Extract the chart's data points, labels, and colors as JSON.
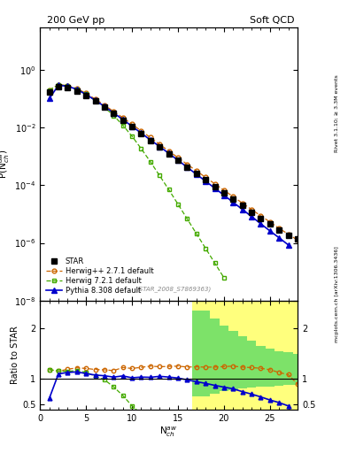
{
  "title_left": "200 GeV pp",
  "title_right": "Soft QCD",
  "xlabel": "N$_{ch}^{aw}$",
  "ylabel_main": "P(N$_{ch}^{aw}$)",
  "ylabel_ratio": "Ratio to STAR",
  "right_label_top": "Rivet 3.1.10; ≥ 3.3M events",
  "right_label_bottom": "mcplots.cern.ch [arXiv:1306.3436]",
  "watermark": "(STAR_2008_S7869363)",
  "star_x": [
    1,
    2,
    3,
    4,
    5,
    6,
    7,
    8,
    9,
    10,
    11,
    12,
    13,
    14,
    15,
    16,
    17,
    18,
    19,
    20,
    21,
    22,
    23,
    24,
    25,
    26,
    27,
    28
  ],
  "star_y": [
    0.165,
    0.265,
    0.24,
    0.185,
    0.127,
    0.082,
    0.051,
    0.031,
    0.018,
    0.0108,
    0.0062,
    0.0036,
    0.0021,
    0.00123,
    0.00072,
    0.00043,
    0.000255,
    0.000152,
    9.1e-05,
    5.4e-05,
    3.2e-05,
    1.95e-05,
    1.18e-05,
    7.2e-06,
    4.5e-06,
    2.85e-06,
    1.85e-06,
    1.4e-06
  ],
  "herwig_x": [
    1,
    2,
    3,
    4,
    5,
    6,
    7,
    8,
    9,
    10,
    11,
    12,
    13,
    14,
    15,
    16,
    17,
    18,
    19,
    20,
    21,
    22,
    23,
    24,
    25,
    26,
    27,
    28,
    29,
    30
  ],
  "herwig_y": [
    0.195,
    0.305,
    0.285,
    0.225,
    0.153,
    0.097,
    0.06,
    0.036,
    0.022,
    0.013,
    0.0076,
    0.0045,
    0.0026,
    0.00153,
    0.0009,
    0.00053,
    0.000315,
    0.000187,
    0.000112,
    6.7e-05,
    4e-05,
    2.4e-05,
    1.44e-05,
    8.7e-06,
    5.3e-06,
    3.2e-06,
    2e-06,
    1.25e-06,
    7.9e-07,
    5e-07
  ],
  "herwig7_x": [
    1,
    2,
    3,
    4,
    5,
    6,
    7,
    8,
    9,
    10,
    11,
    12,
    13,
    14,
    15,
    16,
    17,
    18,
    19,
    20
  ],
  "herwig7_y": [
    0.195,
    0.305,
    0.275,
    0.215,
    0.143,
    0.086,
    0.05,
    0.026,
    0.012,
    0.005,
    0.00185,
    0.00065,
    0.000215,
    7e-05,
    2.2e-05,
    6.8e-06,
    2.1e-06,
    6.5e-07,
    2e-07,
    6.2e-08
  ],
  "pythia_x": [
    1,
    2,
    3,
    4,
    5,
    6,
    7,
    8,
    9,
    10,
    11,
    12,
    13,
    14,
    15,
    16,
    17,
    18,
    19,
    20,
    21,
    22,
    23,
    24,
    25,
    26,
    27
  ],
  "pythia_y": [
    0.1,
    0.29,
    0.27,
    0.21,
    0.14,
    0.088,
    0.054,
    0.032,
    0.019,
    0.011,
    0.0064,
    0.0037,
    0.0022,
    0.00127,
    0.00073,
    0.00042,
    0.00024,
    0.000138,
    7.9e-05,
    4.5e-05,
    2.56e-05,
    1.45e-05,
    8.2e-06,
    4.6e-06,
    2.6e-06,
    1.5e-06,
    8.5e-07
  ],
  "star_color": "#000000",
  "herwig_color": "#cc6600",
  "herwig7_color": "#44aa00",
  "pythia_color": "#0000cc",
  "ylim_main": [
    1e-08,
    30
  ],
  "ylim_ratio": [
    0.38,
    2.55
  ],
  "xlim": [
    0,
    28
  ],
  "ratio_yticks": [
    0.5,
    1.0,
    2.0
  ],
  "ratio_yticklabels": [
    "0.5",
    "1",
    "2"
  ],
  "band_yellow_x_edges": [
    16.5,
    17.5,
    18.5,
    19.5,
    20.5,
    21.5,
    22.5,
    23.5,
    24.5,
    25.5,
    26.5,
    27.5
  ],
  "band_yellow_hi": [
    2.55,
    2.55,
    2.55,
    2.55,
    2.55,
    2.55,
    2.55,
    2.55,
    2.55,
    2.55,
    2.55,
    2.55
  ],
  "band_yellow_lo": [
    0.38,
    0.38,
    0.38,
    0.38,
    0.38,
    0.38,
    0.38,
    0.38,
    0.38,
    0.38,
    0.38,
    0.38
  ],
  "band_green_x_edges": [
    16.5,
    17.5,
    18.5,
    19.5,
    20.5,
    21.5,
    22.5,
    23.5,
    24.5,
    25.5,
    26.5,
    27.5
  ],
  "band_green_hi": [
    2.35,
    2.35,
    2.2,
    2.05,
    1.95,
    1.85,
    1.75,
    1.65,
    1.6,
    1.55,
    1.52,
    1.5
  ],
  "band_green_lo": [
    0.65,
    0.65,
    0.7,
    0.75,
    0.78,
    0.8,
    0.82,
    0.84,
    0.85,
    0.86,
    0.87,
    0.88
  ]
}
